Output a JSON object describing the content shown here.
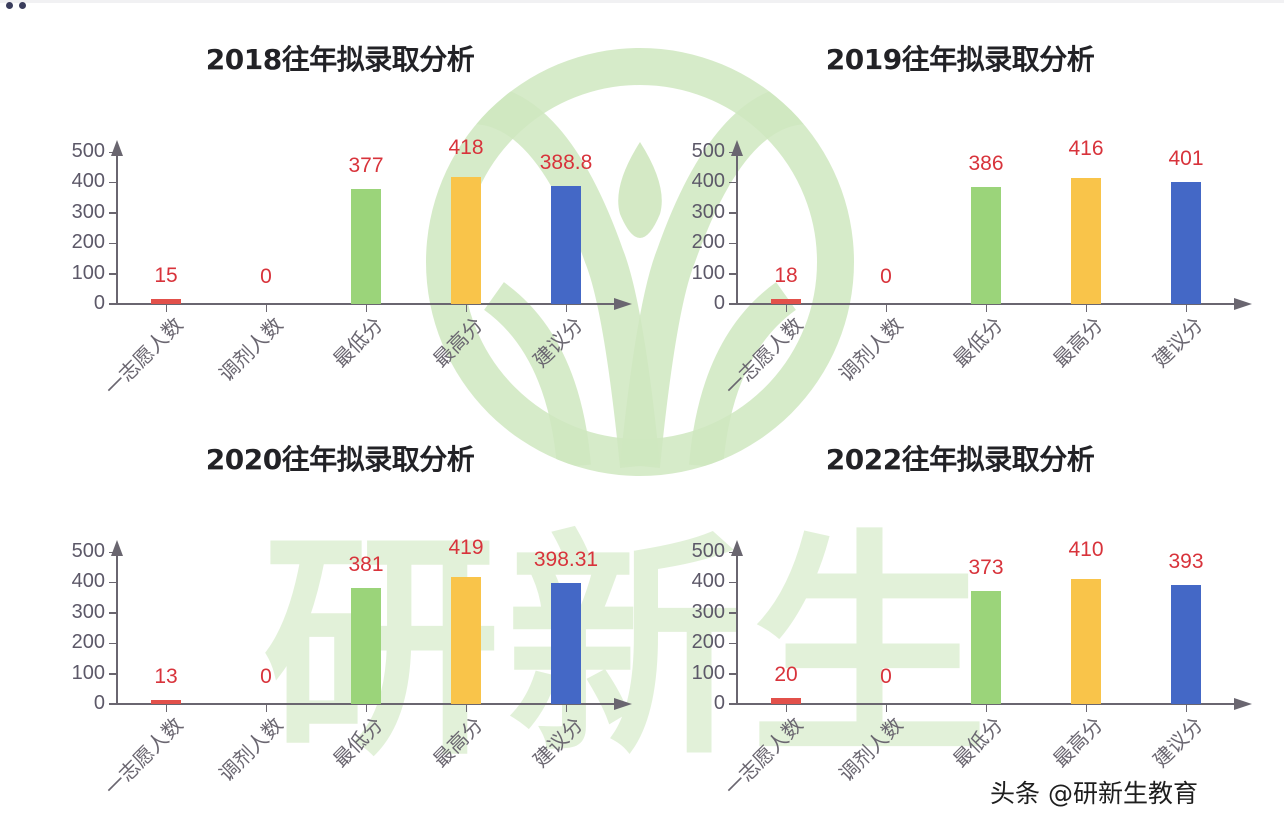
{
  "watermark": {
    "logo": "yanxinsheng-circle-logo",
    "text": "研新生",
    "color": "#c8e6b4"
  },
  "footer": {
    "credit": "头条 @研新生教育"
  },
  "colors": {
    "applicants": "#e2504a",
    "adjusted": "#e2504a",
    "min_score": "#9bd47a",
    "max_score": "#f9c44a",
    "suggested": "#4468c6",
    "value_label": "#d8333b",
    "axis": "#6a6670"
  },
  "charts": [
    {
      "title": "2018往年拟录取分析",
      "yticks": [
        "0",
        "100",
        "200",
        "300",
        "400",
        "500"
      ],
      "categories": [
        "一志愿人数",
        "调剂人数",
        "最低分",
        "最高分",
        "建议分"
      ],
      "values": [
        15,
        0,
        377,
        418,
        388.8
      ],
      "labels": [
        "15",
        "0",
        "377",
        "418",
        "388.8"
      ]
    },
    {
      "title": "2019往年拟录取分析",
      "yticks": [
        "0",
        "100",
        "200",
        "300",
        "400",
        "500"
      ],
      "categories": [
        "一志愿人数",
        "调剂人数",
        "最低分",
        "最高分",
        "建议分"
      ],
      "values": [
        18,
        0,
        386,
        416,
        401
      ],
      "labels": [
        "18",
        "0",
        "386",
        "416",
        "401"
      ]
    },
    {
      "title": "2020往年拟录取分析",
      "yticks": [
        "0",
        "100",
        "200",
        "300",
        "400",
        "500"
      ],
      "categories": [
        "一志愿人数",
        "调剂人数",
        "最低分",
        "最高分",
        "建议分"
      ],
      "values": [
        13,
        0,
        381,
        419,
        398.31
      ],
      "labels": [
        "13",
        "0",
        "381",
        "419",
        "398.31"
      ]
    },
    {
      "title": "2022往年拟录取分析",
      "yticks": [
        "0",
        "100",
        "200",
        "300",
        "400",
        "500"
      ],
      "categories": [
        "一志愿人数",
        "调剂人数",
        "最低分",
        "最高分",
        "建议分"
      ],
      "values": [
        20,
        0,
        373,
        410,
        393
      ],
      "labels": [
        "20",
        "0",
        "373",
        "410",
        "393"
      ]
    }
  ],
  "chart_data": [
    {
      "type": "bar",
      "title": "2018往年拟录取分析",
      "categories": [
        "一志愿人数",
        "调剂人数",
        "最低分",
        "最高分",
        "建议分"
      ],
      "values": [
        15,
        0,
        377,
        418,
        388.8
      ],
      "xlabel": "",
      "ylabel": "",
      "ylim": [
        0,
        500
      ],
      "yticks": [
        0,
        100,
        200,
        300,
        400,
        500
      ],
      "grid": false,
      "data_labels": true,
      "bar_colors": [
        "#e2504a",
        "#e2504a",
        "#9bd47a",
        "#f9c44a",
        "#4468c6"
      ]
    },
    {
      "type": "bar",
      "title": "2019往年拟录取分析",
      "categories": [
        "一志愿人数",
        "调剂人数",
        "最低分",
        "最高分",
        "建议分"
      ],
      "values": [
        18,
        0,
        386,
        416,
        401
      ],
      "xlabel": "",
      "ylabel": "",
      "ylim": [
        0,
        500
      ],
      "yticks": [
        0,
        100,
        200,
        300,
        400,
        500
      ],
      "grid": false,
      "data_labels": true,
      "bar_colors": [
        "#e2504a",
        "#e2504a",
        "#9bd47a",
        "#f9c44a",
        "#4468c6"
      ]
    },
    {
      "type": "bar",
      "title": "2020往年拟录取分析",
      "categories": [
        "一志愿人数",
        "调剂人数",
        "最低分",
        "最高分",
        "建议分"
      ],
      "values": [
        13,
        0,
        381,
        419,
        398.31
      ],
      "xlabel": "",
      "ylabel": "",
      "ylim": [
        0,
        500
      ],
      "yticks": [
        0,
        100,
        200,
        300,
        400,
        500
      ],
      "grid": false,
      "data_labels": true,
      "bar_colors": [
        "#e2504a",
        "#e2504a",
        "#9bd47a",
        "#f9c44a",
        "#4468c6"
      ]
    },
    {
      "type": "bar",
      "title": "2022往年拟录取分析",
      "categories": [
        "一志愿人数",
        "调剂人数",
        "最低分",
        "最高分",
        "建议分"
      ],
      "values": [
        20,
        0,
        373,
        410,
        393
      ],
      "xlabel": "",
      "ylabel": "",
      "ylim": [
        0,
        500
      ],
      "yticks": [
        0,
        100,
        200,
        300,
        400,
        500
      ],
      "grid": false,
      "data_labels": true,
      "bar_colors": [
        "#e2504a",
        "#e2504a",
        "#9bd47a",
        "#f9c44a",
        "#4468c6"
      ]
    }
  ]
}
